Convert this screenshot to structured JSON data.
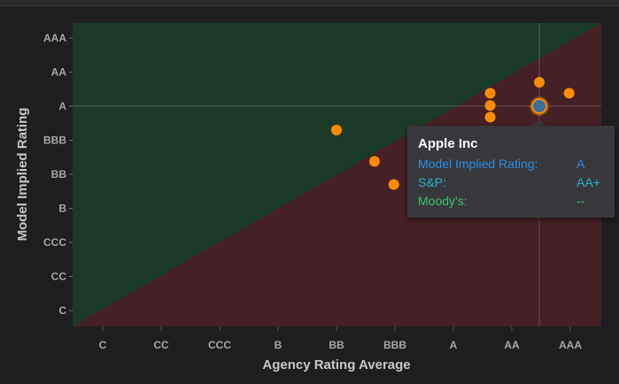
{
  "chart_data": {
    "type": "scatter",
    "xlabel": "Agency Rating Average",
    "ylabel": "Model Implied Rating",
    "x_categories": [
      "C",
      "CC",
      "CCC",
      "B",
      "BB",
      "BBB",
      "A",
      "AA",
      "AAA"
    ],
    "y_categories": [
      "C",
      "CC",
      "CCC",
      "B",
      "BB",
      "BBB",
      "A",
      "AA",
      "AAA"
    ],
    "regions": [
      {
        "name": "above-diagonal",
        "color": "#1c3a2a"
      },
      {
        "name": "below-diagonal",
        "color": "#452026"
      }
    ],
    "points": [
      {
        "x": 4.0,
        "y": 5.3
      },
      {
        "x": 4.65,
        "y": 4.38
      },
      {
        "x": 4.98,
        "y": 3.7
      },
      {
        "x": 6.63,
        "y": 6.38
      },
      {
        "x": 6.63,
        "y": 6.02
      },
      {
        "x": 6.63,
        "y": 5.68
      },
      {
        "x": 7.47,
        "y": 6.7
      },
      {
        "x": 7.98,
        "y": 6.38
      },
      {
        "x": 7.47,
        "y": 6.0,
        "highlighted": true
      }
    ],
    "point_color": "#ff8c00",
    "highlight_color": "#3a6fa0",
    "crosshair": {
      "x": 7.47,
      "y": 6.0
    },
    "tooltip": {
      "title": "Apple Inc",
      "rows": [
        {
          "label": "Model Implied Rating:",
          "value": "A",
          "color": "#2e8ee8"
        },
        {
          "label": "S&P:",
          "value": "AA+",
          "color": "#2ab0c8"
        },
        {
          "label": "Moody's:",
          "value": "--",
          "color": "#3cc070"
        }
      ]
    }
  }
}
